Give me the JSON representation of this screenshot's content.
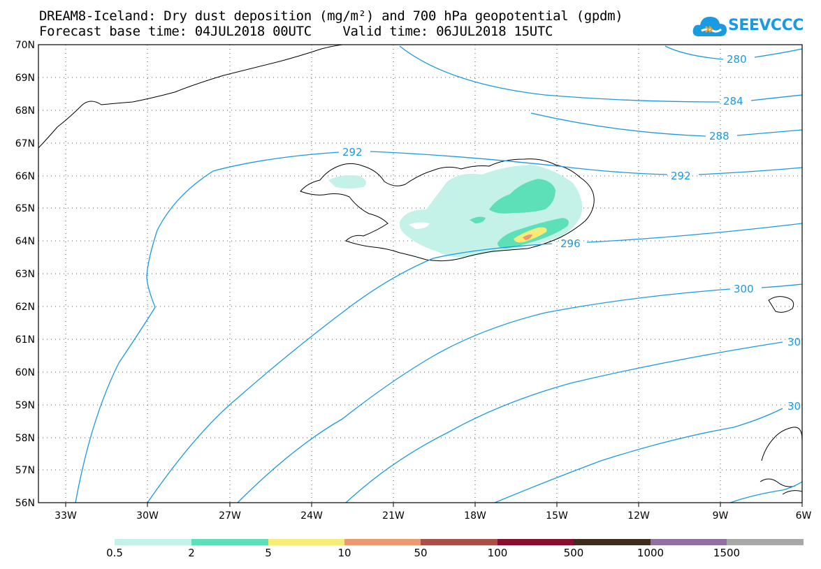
{
  "header": {
    "title_line1": "DREAM8-Iceland: Dry dust deposition (mg/m²) and 700 hPa geopotential (gpdm)",
    "title_line2": "Forecast base time: 04JUL2018 00UTC    Valid time: 06JUL2018 15UTC"
  },
  "logo": {
    "text": "SEEVCCC",
    "icon": "cloud-logo-icon"
  },
  "map": {
    "lat_labels": [
      "70N",
      "69N",
      "68N",
      "67N",
      "66N",
      "65N",
      "64N",
      "63N",
      "62N",
      "61N",
      "60N",
      "59N",
      "58N",
      "57N",
      "56N"
    ],
    "lon_labels": [
      "33W",
      "30W",
      "27W",
      "24W",
      "21W",
      "18W",
      "15W",
      "12W",
      "9W",
      "6W"
    ],
    "contour_labels": [
      "280",
      "284",
      "288",
      "292",
      "292",
      "296",
      "300",
      "30",
      "30"
    ],
    "contour_color": "#1a9ae0"
  },
  "colorbar": {
    "labels": [
      "0.5",
      "2",
      "5",
      "10",
      "50",
      "100",
      "500",
      "1000",
      "1500"
    ],
    "colors": [
      "#c4f2e8",
      "#5de0b8",
      "#f7ec78",
      "#ec9870",
      "#a85048",
      "#880e30",
      "#3e2c1c",
      "#9070a0",
      "#a8a8a8"
    ]
  }
}
